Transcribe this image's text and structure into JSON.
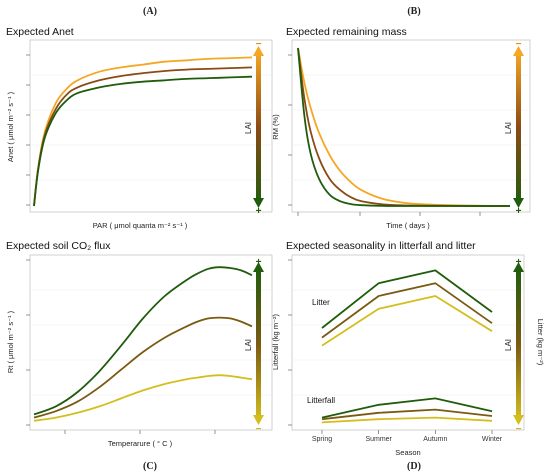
{
  "figure": {
    "letters": [
      "(A)",
      "(B)",
      "(C)",
      "(D)"
    ],
    "colors": {
      "high_lai": "#1f5c0c",
      "mid_lai": "#7a5a12",
      "low_lai_orange": "#f5a623",
      "low_lai_yellow": "#d4be1e",
      "mid_brown": "#8a4a14"
    }
  },
  "chart_data": [
    {
      "id": "A",
      "type": "line",
      "title": "Expected Anet",
      "xlabel": "PAR ( μmol quanta m⁻² s⁻¹ )",
      "ylabel": "Anet ( μmol m⁻² s⁻¹ )",
      "x": [
        0,
        0.02,
        0.05,
        0.1,
        0.15,
        0.2,
        0.3,
        0.4,
        0.5,
        0.6,
        0.7,
        0.8,
        0.9,
        1.0
      ],
      "xlim": [
        0,
        1
      ],
      "ylim": [
        0,
        1.12
      ],
      "series": [
        {
          "values": [
            0.0,
            0.28,
            0.52,
            0.72,
            0.82,
            0.88,
            0.94,
            0.97,
            0.99,
            1.01,
            1.02,
            1.03,
            1.035,
            1.04
          ],
          "color": "#f5a623"
        },
        {
          "values": [
            0.0,
            0.27,
            0.5,
            0.68,
            0.78,
            0.83,
            0.88,
            0.91,
            0.93,
            0.945,
            0.955,
            0.96,
            0.965,
            0.97
          ],
          "color": "#8a4a14"
        },
        {
          "values": [
            0.0,
            0.26,
            0.48,
            0.65,
            0.74,
            0.79,
            0.83,
            0.855,
            0.87,
            0.88,
            0.89,
            0.895,
            0.9,
            0.905
          ],
          "color": "#1f5c0c"
        }
      ],
      "legend": {
        "label": "LAI",
        "top_symbol": "−",
        "bottom_symbol": "+",
        "gradient": [
          "#f5a623",
          "#8a4a14",
          "#1f5c0c"
        ]
      }
    },
    {
      "id": "B",
      "type": "line",
      "title": "Expected remaining mass",
      "xlabel": "Time ( days )",
      "ylabel": "RM (%)",
      "x": [
        0,
        0.03,
        0.06,
        0.1,
        0.15,
        0.2,
        0.25,
        0.3,
        0.4,
        0.5,
        0.6,
        0.8,
        1.0
      ],
      "xlim": [
        0,
        1
      ],
      "ylim": [
        0,
        1
      ],
      "series": [
        {
          "values": [
            1.0,
            0.78,
            0.62,
            0.46,
            0.32,
            0.22,
            0.15,
            0.1,
            0.045,
            0.02,
            0.01,
            0.003,
            0.0
          ],
          "color": "#f5a623"
        },
        {
          "values": [
            1.0,
            0.68,
            0.47,
            0.3,
            0.17,
            0.1,
            0.055,
            0.03,
            0.01,
            0.004,
            0.002,
            0.0,
            0.0
          ],
          "color": "#8a4a14"
        },
        {
          "values": [
            1.0,
            0.57,
            0.33,
            0.17,
            0.07,
            0.03,
            0.012,
            0.005,
            0.001,
            0.0,
            0.0,
            0.0,
            0.0
          ],
          "color": "#1f5c0c"
        }
      ],
      "legend": {
        "label": "LAI",
        "top_symbol": "−",
        "bottom_symbol": "+",
        "gradient": [
          "#f5a623",
          "#8a4a14",
          "#1f5c0c"
        ]
      }
    },
    {
      "id": "C",
      "type": "line",
      "title": "Expected soil CO₂ flux",
      "xlabel": "Temperarure ( ° C )",
      "ylabel": "Rt ( μmol m⁻² s⁻¹ )",
      "x": [
        0,
        0.1,
        0.2,
        0.3,
        0.4,
        0.5,
        0.6,
        0.7,
        0.75,
        0.8,
        0.85,
        0.9,
        0.95,
        1.0
      ],
      "xlim": [
        0,
        1
      ],
      "ylim": [
        0,
        1
      ],
      "series": [
        {
          "values": [
            0.06,
            0.11,
            0.2,
            0.33,
            0.49,
            0.66,
            0.8,
            0.9,
            0.94,
            0.97,
            0.98,
            0.975,
            0.96,
            0.93
          ],
          "color": "#1f5c0c"
        },
        {
          "values": [
            0.04,
            0.08,
            0.14,
            0.23,
            0.34,
            0.45,
            0.54,
            0.61,
            0.64,
            0.66,
            0.665,
            0.66,
            0.64,
            0.61
          ],
          "color": "#7a5a12"
        },
        {
          "values": [
            0.02,
            0.04,
            0.07,
            0.11,
            0.16,
            0.21,
            0.25,
            0.28,
            0.29,
            0.3,
            0.305,
            0.3,
            0.29,
            0.28
          ],
          "color": "#d4be1e"
        }
      ],
      "legend": {
        "label": "LAI",
        "top_symbol": "+",
        "bottom_symbol": "−",
        "gradient": [
          "#1f5c0c",
          "#7a5a12",
          "#d4be1e"
        ]
      }
    },
    {
      "id": "D",
      "type": "line",
      "title": "Expected seasonality in litterfall and litter",
      "xlabel": "Season",
      "ylabel": "Litterfall (kg m⁻²)",
      "ylabel_right": "Litter (kg m⁻²)",
      "categories": [
        "Spring",
        "Summer",
        "Autumn",
        "Winter"
      ],
      "ylim": [
        0,
        1
      ],
      "annotations": [
        "Litter",
        "Litterfall"
      ],
      "series": [
        {
          "group": "Litter",
          "values": [
            0.6,
            0.88,
            0.96,
            0.7
          ],
          "color": "#1f5c0c"
        },
        {
          "group": "Litter",
          "values": [
            0.54,
            0.8,
            0.88,
            0.63
          ],
          "color": "#7a5a12"
        },
        {
          "group": "Litter",
          "values": [
            0.49,
            0.72,
            0.8,
            0.58
          ],
          "color": "#d4be1e"
        },
        {
          "group": "Litterfall",
          "values": [
            0.04,
            0.12,
            0.16,
            0.08
          ],
          "color": "#1f5c0c"
        },
        {
          "group": "Litterfall",
          "values": [
            0.03,
            0.07,
            0.09,
            0.05
          ],
          "color": "#7a5a12"
        },
        {
          "group": "Litterfall",
          "values": [
            0.01,
            0.03,
            0.04,
            0.02
          ],
          "color": "#d4be1e"
        }
      ],
      "legend": {
        "label": "LAI",
        "top_symbol": "+",
        "bottom_symbol": "−",
        "gradient": [
          "#1f5c0c",
          "#7a5a12",
          "#d4be1e"
        ]
      }
    }
  ]
}
